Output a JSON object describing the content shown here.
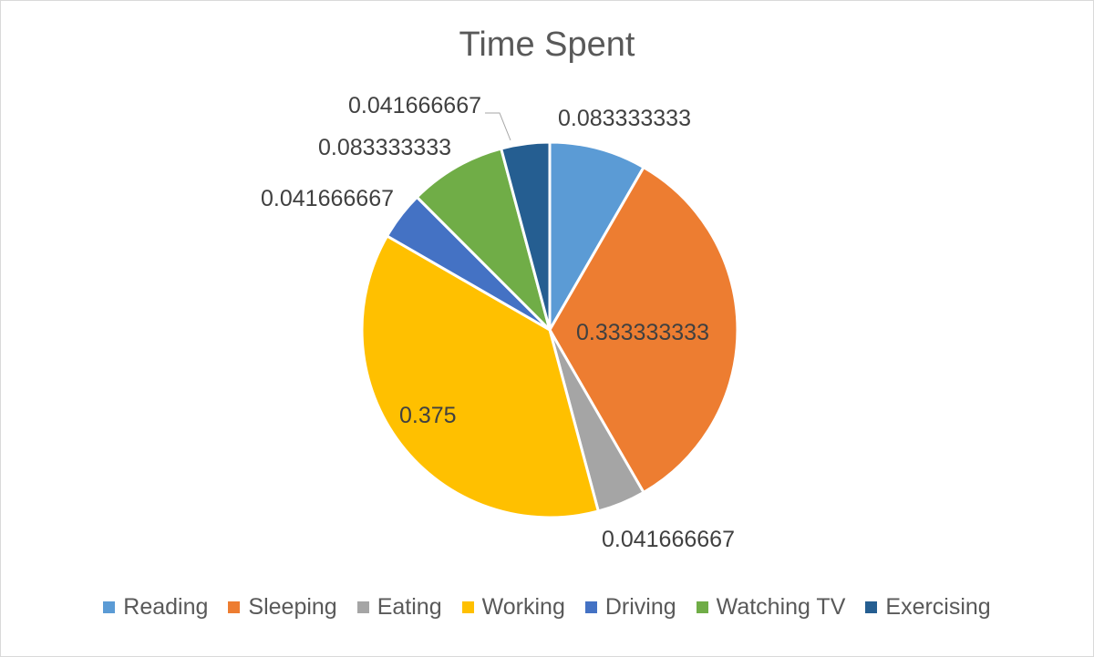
{
  "chart_data": {
    "type": "pie",
    "title": "Time Spent",
    "legend_position": "bottom",
    "slices": [
      {
        "label": "Reading",
        "value": 0.083333333,
        "display": "0.083333333",
        "color": "#5B9BD5"
      },
      {
        "label": "Sleeping",
        "value": 0.333333333,
        "display": "0.333333333",
        "color": "#ED7D31"
      },
      {
        "label": "Eating",
        "value": 0.041666667,
        "display": "0.041666667",
        "color": "#A5A5A5"
      },
      {
        "label": "Working",
        "value": 0.375,
        "display": "0.375",
        "color": "#FFC000"
      },
      {
        "label": "Driving",
        "value": 0.041666667,
        "display": "0.041666667",
        "color": "#4472C4"
      },
      {
        "label": "Watching TV",
        "value": 0.083333333,
        "display": "0.083333333",
        "color": "#70AD47"
      },
      {
        "label": "Exercising",
        "value": 0.041666667,
        "display": "0.041666667",
        "color": "#255E91"
      }
    ]
  }
}
